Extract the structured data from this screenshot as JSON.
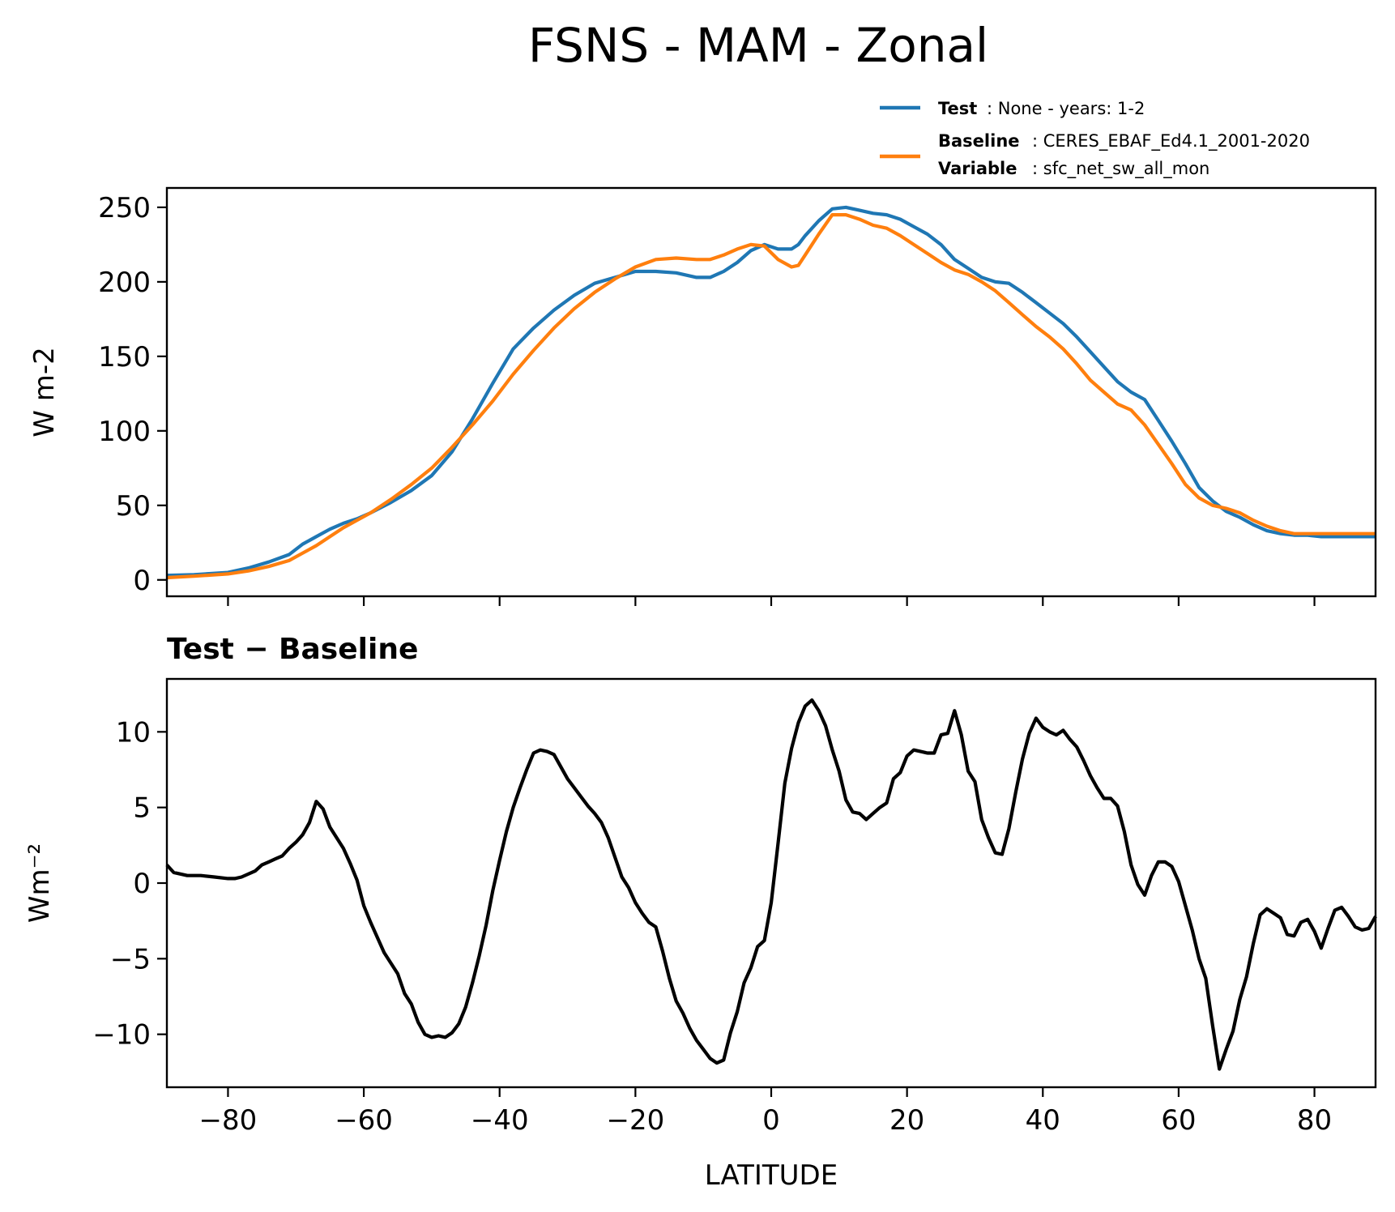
{
  "chart_data": {
    "title": "FSNS - MAM - Zonal",
    "xlabel": "LATITUDE",
    "xlim": [
      -89,
      89
    ],
    "xticks": [
      -80,
      -60,
      -40,
      -20,
      0,
      20,
      40,
      60,
      80
    ],
    "xtick_labels": [
      "−80",
      "−60",
      "−40",
      "−20",
      "0",
      "20",
      "40",
      "60",
      "80"
    ],
    "legend": {
      "entries": [
        {
          "series": "test",
          "lines": [
            {
              "key": "Test",
              "text": ": None - years: 1-2"
            }
          ]
        },
        {
          "series": "baseline",
          "lines": [
            {
              "key": "Baseline",
              "text": ": CERES_EBAF_Ed4.1_2001-2020"
            },
            {
              "key": "Variable",
              "text": ": sfc_net_sw_all_mon"
            }
          ]
        }
      ],
      "placement": "top-right, above plot"
    },
    "charts": [
      {
        "type": "line",
        "ylabel": "W m-2",
        "ylim": [
          -11,
          263
        ],
        "yticks": [
          0,
          50,
          100,
          150,
          200,
          250
        ],
        "ytick_labels": [
          "0",
          "50",
          "100",
          "150",
          "200",
          "250"
        ],
        "series": [
          {
            "name": "Test",
            "key": "test",
            "color": "#1f77b4",
            "x": [
              -89,
              -85,
              -80,
              -77,
              -74,
              -71,
              -69,
              -67,
              -65,
              -63,
              -61,
              -59,
              -56,
              -53,
              -50,
              -47,
              -44,
              -41,
              -38,
              -35,
              -32,
              -29,
              -26,
              -23,
              -20,
              -17,
              -14,
              -11,
              -9,
              -7,
              -5,
              -3,
              -1,
              1,
              3,
              4,
              5,
              7,
              9,
              11,
              13,
              15,
              17,
              19,
              21,
              23,
              25,
              27,
              29,
              31,
              33,
              35,
              37,
              39,
              41,
              43,
              45,
              47,
              49,
              51,
              53,
              55,
              57,
              59,
              61,
              63,
              65,
              67,
              69,
              71,
              73,
              75,
              77,
              79,
              81,
              83,
              85,
              87,
              89
            ],
            "y": [
              3,
              3.5,
              5,
              8,
              12,
              17,
              24,
              29,
              34,
              38,
              41,
              45,
              52,
              60,
              70,
              86,
              108,
              132,
              155,
              169,
              181,
              191,
              199,
              203,
              207,
              207,
              206,
              203,
              203,
              207,
              213,
              221,
              225,
              222,
              222,
              225,
              231,
              241,
              249,
              250,
              248,
              246,
              245,
              242,
              237,
              232,
              225,
              215,
              209,
              203,
              200,
              199,
              193,
              186,
              179,
              172,
              163,
              153,
              143,
              133,
              126,
              121,
              107,
              93,
              78,
              62,
              53,
              46,
              42,
              37,
              33,
              31,
              30,
              30,
              29,
              29,
              29,
              29,
              29
            ]
          },
          {
            "name": "Baseline",
            "key": "baseline",
            "color": "#ff7f0e",
            "x": [
              -89,
              -85,
              -80,
              -77,
              -74,
              -71,
              -69,
              -67,
              -65,
              -63,
              -61,
              -59,
              -56,
              -53,
              -50,
              -47,
              -44,
              -41,
              -38,
              -35,
              -32,
              -29,
              -26,
              -23,
              -20,
              -17,
              -14,
              -11,
              -9,
              -7,
              -5,
              -3,
              -1,
              1,
              3,
              4,
              5,
              7,
              9,
              11,
              13,
              15,
              17,
              19,
              21,
              23,
              25,
              27,
              29,
              31,
              33,
              35,
              37,
              39,
              41,
              43,
              45,
              47,
              49,
              51,
              53,
              55,
              57,
              59,
              61,
              63,
              65,
              67,
              69,
              71,
              73,
              75,
              77,
              79,
              81,
              83,
              85,
              87,
              89
            ],
            "y": [
              1.5,
              2.5,
              4,
              6,
              9,
              13,
              18,
              23,
              29,
              35,
              40,
              45,
              54,
              64,
              75,
              89,
              104,
              120,
              138,
              154,
              169,
              182,
              193,
              202,
              210,
              215,
              216,
              215,
              215,
              218,
              222,
              225,
              224,
              215,
              210,
              211,
              218,
              232,
              245,
              245,
              242,
              238,
              236,
              231,
              225,
              219,
              213,
              208,
              205,
              200,
              194,
              186,
              178,
              170,
              163,
              155,
              145,
              134,
              126,
              118,
              114,
              104,
              91,
              78,
              64,
              55,
              50,
              48,
              45,
              40,
              36,
              33,
              31,
              31,
              31,
              31,
              31,
              31,
              31
            ]
          }
        ]
      },
      {
        "type": "line",
        "subtitle": "Test − Baseline",
        "ylabel": "Wm⁻²",
        "ylim": [
          -13.5,
          13.5
        ],
        "yticks": [
          -10,
          -5,
          0,
          5,
          10
        ],
        "ytick_labels": [
          "−10",
          "−5",
          "0",
          "5",
          "10"
        ],
        "series": [
          {
            "name": "Test − Baseline",
            "key": "diff",
            "color": "#000000",
            "x": [
              -89,
              -88,
              -86,
              -84,
              -82,
              -80,
              -79,
              -78,
              -76,
              -75,
              -74,
              -73,
              -72,
              -71,
              -70,
              -69,
              -68,
              -67,
              -66,
              -65,
              -63,
              -62,
              -61,
              -60,
              -59,
              -57,
              -55,
              -54,
              -53,
              -52,
              -51,
              -50,
              -49,
              -48,
              -47,
              -46,
              -45,
              -44,
              -43,
              -42,
              -41,
              -40,
              -39,
              -38,
              -37,
              -36,
              -35,
              -34,
              -33,
              -32,
              -31,
              -30,
              -29,
              -28,
              -27,
              -26,
              -25,
              -24,
              -23,
              -22,
              -21,
              -20,
              -19,
              -18,
              -17,
              -16,
              -15,
              -14,
              -13,
              -12,
              -11,
              -10,
              -9,
              -8,
              -7,
              -6,
              -5,
              -4,
              -3,
              -2,
              -1,
              0,
              1,
              2,
              3,
              4,
              5,
              6,
              7,
              8,
              9,
              10,
              11,
              12,
              13,
              14,
              15,
              16,
              17,
              18,
              19,
              20,
              21,
              22,
              23,
              24,
              25,
              26,
              27,
              28,
              29,
              30,
              31,
              32,
              33,
              34,
              35,
              36,
              37,
              38,
              39,
              40,
              41,
              42,
              43,
              44,
              45,
              46,
              47,
              48,
              49,
              50,
              51,
              52,
              53,
              54,
              55,
              56,
              57,
              58,
              59,
              60,
              61,
              62,
              63,
              64,
              65,
              66,
              67,
              68,
              69,
              70,
              71,
              72,
              73,
              74,
              75,
              76,
              77,
              78,
              79,
              80,
              81,
              82,
              83,
              84,
              85,
              86,
              87,
              88,
              89
            ],
            "y": [
              1.2,
              0.7,
              0.5,
              0.5,
              0.4,
              0.3,
              0.3,
              0.4,
              0.8,
              1.2,
              1.4,
              1.6,
              1.8,
              2.3,
              2.7,
              3.2,
              4.0,
              5.4,
              4.9,
              3.7,
              2.3,
              1.3,
              0.2,
              -1.5,
              -2.6,
              -4.6,
              -6.0,
              -7.3,
              -8.0,
              -9.2,
              -10.0,
              -10.2,
              -10.1,
              -10.2,
              -9.9,
              -9.3,
              -8.2,
              -6.6,
              -4.8,
              -2.8,
              -0.5,
              1.5,
              3.4,
              5.0,
              6.3,
              7.5,
              8.6,
              8.8,
              8.7,
              8.5,
              7.7,
              6.9,
              6.3,
              5.7,
              5.1,
              4.6,
              4.0,
              3.0,
              1.7,
              0.4,
              -0.3,
              -1.3,
              -2.0,
              -2.6,
              -2.9,
              -4.5,
              -6.3,
              -7.8,
              -8.6,
              -9.6,
              -10.4,
              -11.0,
              -11.6,
              -11.9,
              -11.7,
              -9.9,
              -8.5,
              -6.6,
              -5.6,
              -4.2,
              -3.8,
              -1.3,
              2.6,
              6.6,
              8.9,
              10.6,
              11.7,
              12.1,
              11.4,
              10.4,
              8.8,
              7.4,
              5.5,
              4.7,
              4.6,
              4.2,
              4.6,
              5.0,
              5.3,
              6.9,
              7.3,
              8.4,
              8.8,
              8.7,
              8.6,
              8.6,
              9.8,
              9.9,
              11.4,
              9.8,
              7.4,
              6.7,
              4.2,
              3.0,
              2.0,
              1.9,
              3.6,
              6.0,
              8.2,
              9.9,
              10.9,
              10.3,
              10.0,
              9.8,
              10.1,
              9.5,
              9.0,
              8.1,
              7.1,
              6.3,
              5.6,
              5.6,
              5.1,
              3.4,
              1.2,
              -0.1,
              -0.8,
              0.5,
              1.4,
              1.4,
              1.1,
              0.1,
              -1.5,
              -3.1,
              -5.0,
              -6.3,
              -9.4,
              -12.3,
              -11.0,
              -9.8,
              -7.7,
              -6.2,
              -4.0,
              -2.1,
              -1.7,
              -2.0,
              -2.3,
              -3.4,
              -3.5,
              -2.6,
              -2.4,
              -3.2,
              -4.3,
              -3.0,
              -1.8,
              -1.6,
              -2.2,
              -2.9,
              -3.1,
              -3.0,
              -2.2
            ]
          }
        ]
      }
    ]
  }
}
